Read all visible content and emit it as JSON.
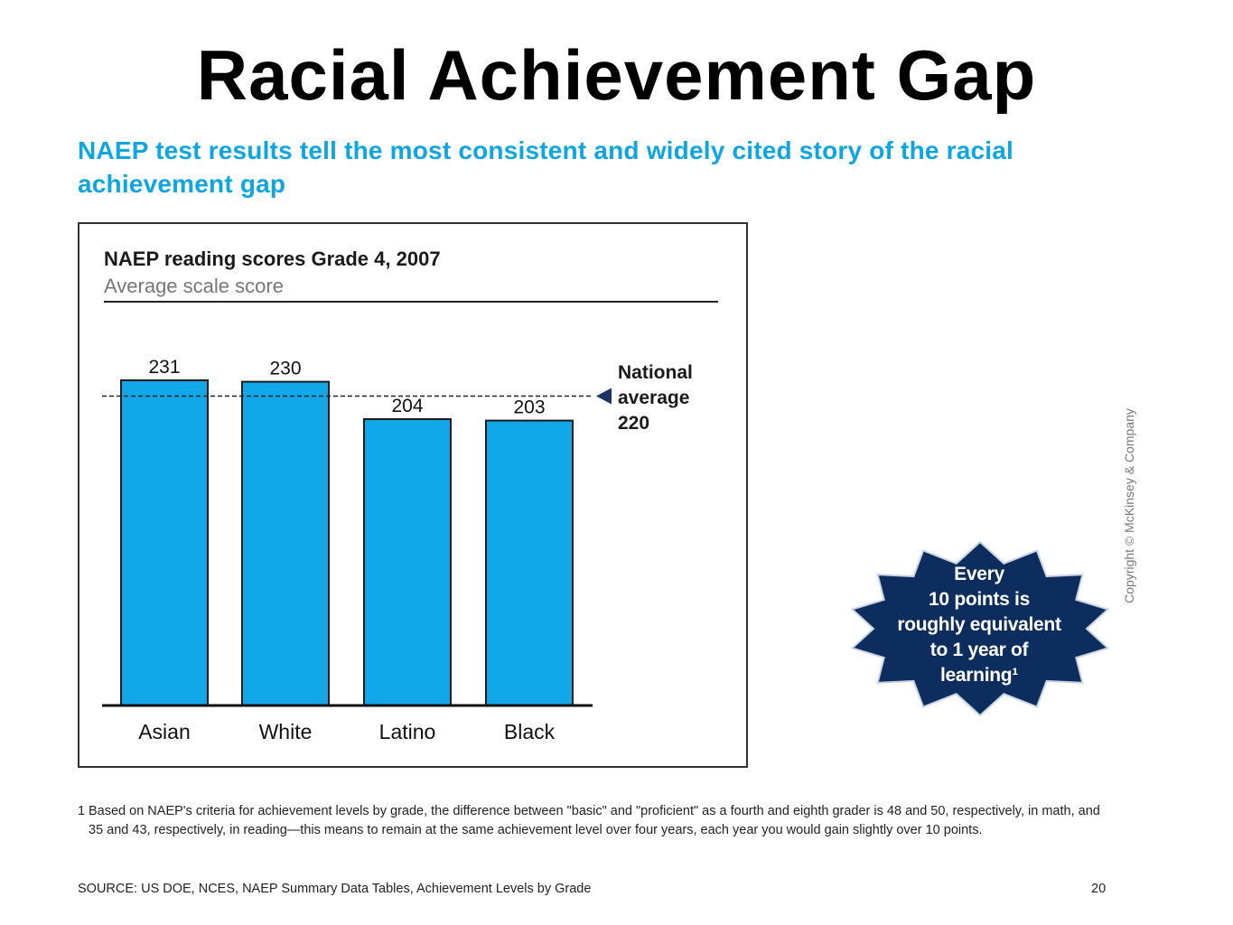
{
  "slide": {
    "title": "Racial Achievement Gap",
    "headline": "NAEP test results tell the most consistent and widely cited story of the racial achievement gap",
    "accent_color": "#0ea5e0",
    "badge": {
      "lines": [
        "Every",
        "10 points is",
        "roughly equivalent",
        "to 1 year of",
        "learning¹"
      ],
      "color": "#0d2d5e"
    },
    "copyright": "Copyright © McKinsey & Company",
    "footnote_number": "1",
    "footnote_text": "Based on NAEP's criteria for achievement levels by grade, the difference between \"basic\" and \"proficient\" as a fourth and eighth grader is 48 and 50, respectively, in math, and 35 and 43, respectively, in reading—this means to remain at the same achievement level over four years, each year you would gain slightly over 10 points.",
    "source": "SOURCE: US DOE, NCES, NAEP Summary Data Tables, Achievement Levels by Grade",
    "page_number": "20"
  },
  "chart_data": {
    "type": "bar",
    "title": "NAEP reading scores Grade 4, 2007",
    "subtitle": "Average scale score",
    "categories": [
      "Asian",
      "White",
      "Latino",
      "Black"
    ],
    "values": [
      231,
      230,
      204,
      203
    ],
    "bar_color": "#11a7e8",
    "reference_line": {
      "value": 220,
      "label_lines": [
        "National",
        "average",
        "220"
      ],
      "marker_color": "#1a3564"
    }
  }
}
